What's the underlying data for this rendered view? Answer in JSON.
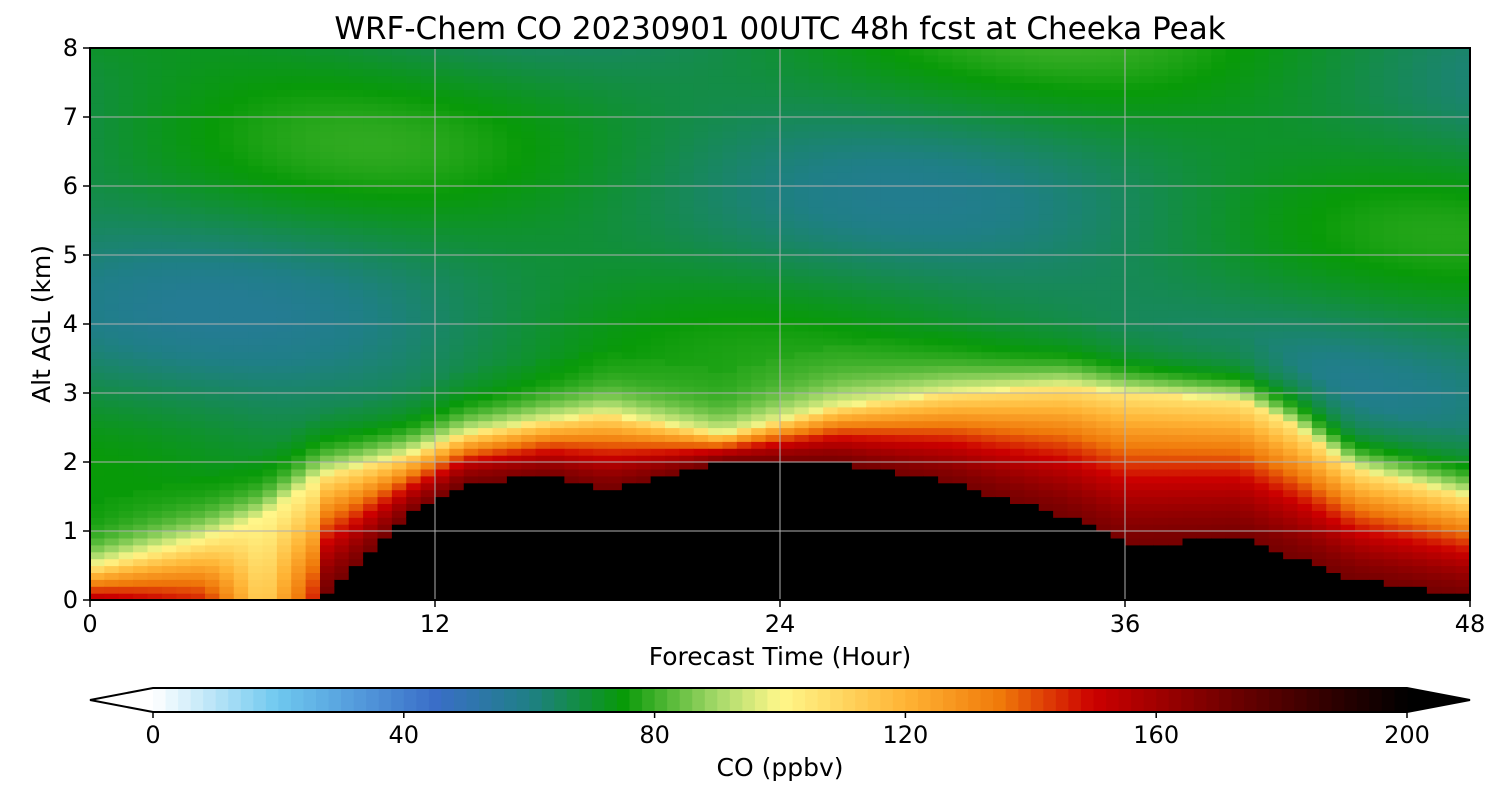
{
  "chart_data": {
    "type": "heatmap",
    "title": "WRF-Chem CO  20230901 00UTC 48h fcst at Cheeka Peak",
    "xlabel": "Forecast Time (Hour)",
    "ylabel": "Alt AGL (km)",
    "xlim": [
      0,
      48
    ],
    "ylim": [
      0,
      8
    ],
    "x_ticks": [
      0,
      12,
      24,
      36,
      48
    ],
    "y_ticks": [
      0,
      1,
      2,
      3,
      4,
      5,
      6,
      7,
      8
    ],
    "grid": true,
    "colorbar": {
      "label": "CO  (ppbv)",
      "min": 0,
      "max": 200,
      "ticks": [
        0,
        40,
        80,
        120,
        160,
        200
      ],
      "extend": "both",
      "orientation": "horizontal",
      "stops": [
        {
          "v": 0,
          "c": "#ffffff"
        },
        {
          "v": 20,
          "c": "#6ec8ef"
        },
        {
          "v": 45,
          "c": "#3a6ec8"
        },
        {
          "v": 60,
          "c": "#1f7f86"
        },
        {
          "v": 75,
          "c": "#089a08"
        },
        {
          "v": 90,
          "c": "#a5d96a"
        },
        {
          "v": 100,
          "c": "#fff78a"
        },
        {
          "v": 120,
          "c": "#ffb435"
        },
        {
          "v": 135,
          "c": "#f07a0a"
        },
        {
          "v": 150,
          "c": "#cc0000"
        },
        {
          "v": 172,
          "c": "#6e0000"
        },
        {
          "v": 200,
          "c": "#000000"
        }
      ]
    },
    "field_keypoints": {
      "times": [
        0,
        4,
        6,
        8,
        11,
        13,
        16,
        18,
        22,
        26,
        30,
        34,
        36,
        40,
        42,
        44,
        48
      ],
      "altitudes": [
        0,
        0.25,
        0.5,
        0.8,
        1.0,
        1.3,
        1.6,
        1.9,
        2.2,
        2.5,
        2.8,
        3.1,
        3.5,
        4.0,
        5.0,
        6.0,
        7.0,
        8.0
      ],
      "base_level": 63,
      "top_level": 70,
      "lower_limit": 65,
      "plume_top_km": [
        0.5,
        0.9,
        1.2,
        1.8,
        2.1,
        2.4,
        2.6,
        2.7,
        2.4,
        2.8,
        3.0,
        3.1,
        3.0,
        2.9,
        2.5,
        1.9,
        1.5
      ],
      "plume_level": [
        155,
        145,
        110,
        150,
        160,
        200,
        200,
        200,
        200,
        200,
        200,
        155,
        125,
        120,
        118,
        110,
        100
      ],
      "black_top_km": [
        0,
        0,
        0,
        0,
        1.2,
        1.7,
        1.8,
        1.6,
        2.0,
        2.0,
        1.7,
        1.2,
        0.8,
        0.9,
        0.6,
        0.3,
        0.05
      ]
    }
  }
}
